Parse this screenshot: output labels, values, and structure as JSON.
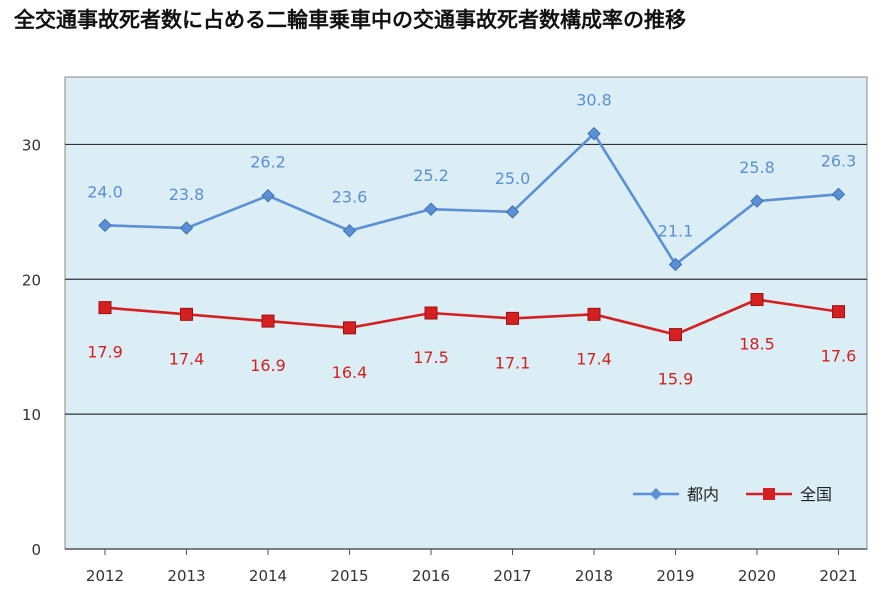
{
  "chart_data": {
    "type": "line",
    "title": "全交通事故死者数に占める二輪車乗車中の交通事故死者数構成率の推移",
    "xlabel": "",
    "ylabel": "",
    "categories": [
      "2012",
      "2013",
      "2014",
      "2015",
      "2016",
      "2017",
      "2018",
      "2019",
      "2020",
      "2021"
    ],
    "ylim": [
      0,
      35
    ],
    "yticks": [
      0,
      10,
      20,
      30
    ],
    "grid": true,
    "legend_position": "bottom-right",
    "series": [
      {
        "name": "都内",
        "color": "#5b8fd6",
        "marker": "diamond",
        "values": [
          24.0,
          23.8,
          26.2,
          23.6,
          25.2,
          25.0,
          30.8,
          21.1,
          25.8,
          26.3
        ],
        "labels": [
          "24.0",
          "23.8",
          "26.2",
          "23.6",
          "25.2",
          "25.0",
          "30.8",
          "21.1",
          "25.8",
          "26.3"
        ]
      },
      {
        "name": "全国",
        "color": "#d42020",
        "marker": "square",
        "values": [
          17.9,
          17.4,
          16.9,
          16.4,
          17.5,
          17.1,
          17.4,
          15.9,
          18.5,
          17.6
        ],
        "labels": [
          "17.9",
          "17.4",
          "16.9",
          "16.4",
          "17.5",
          "17.1",
          "17.4",
          "15.9",
          "18.5",
          "17.6"
        ]
      }
    ],
    "plot_background": "#dbeef6",
    "gridline_color": "#333333"
  }
}
